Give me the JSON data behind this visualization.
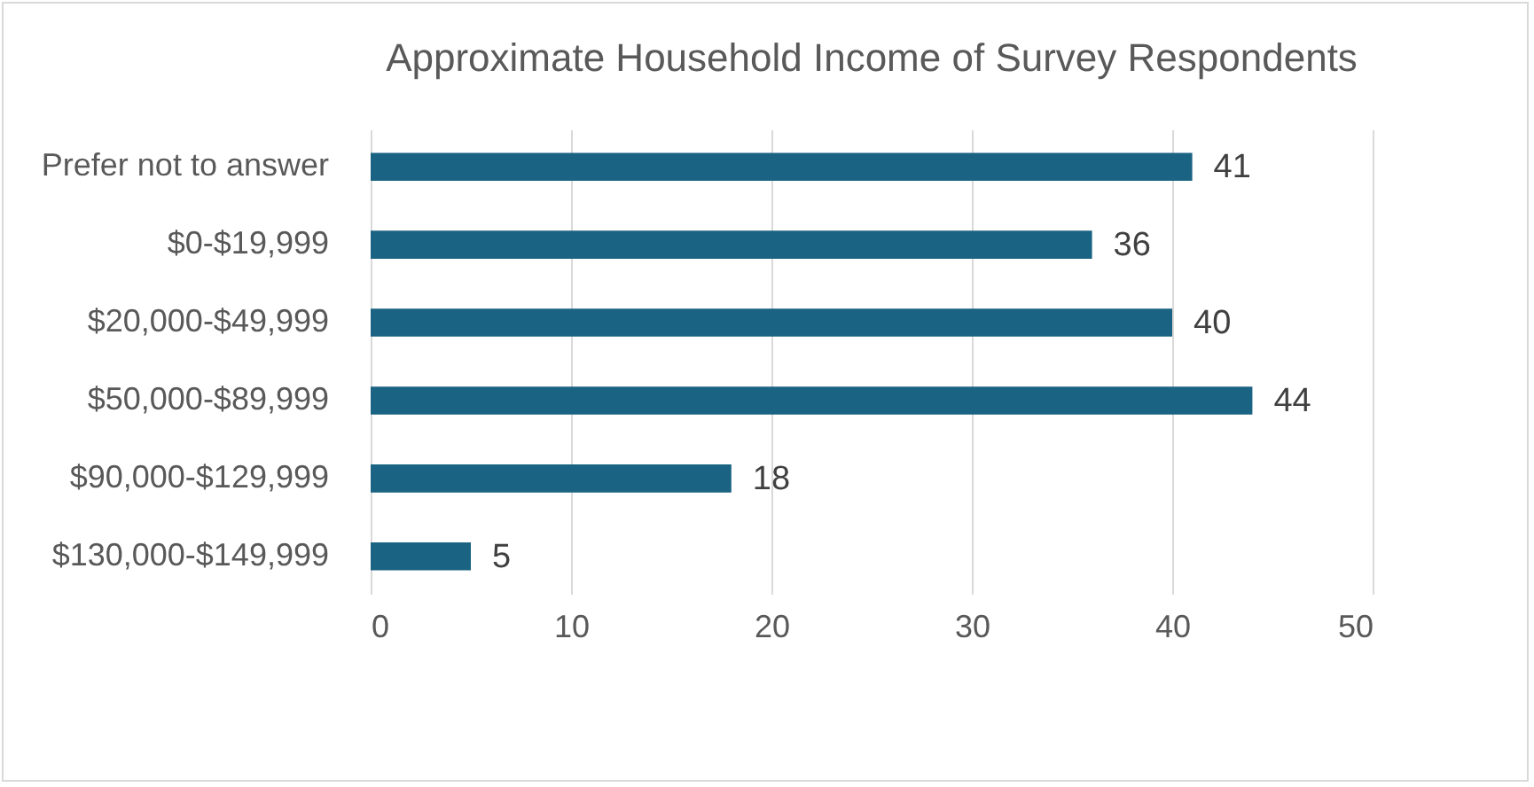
{
  "chart_data": {
    "type": "bar",
    "orientation": "horizontal",
    "title": "Approximate Household Income of Survey Respondents",
    "categories": [
      "Prefer not to answer",
      "$0-$19,999",
      "$20,000-$49,999",
      "$50,000-$89,999",
      "$90,000-$129,999",
      "$130,000-$149,999"
    ],
    "values": [
      41,
      36,
      40,
      44,
      18,
      5
    ],
    "color": "#1b6383",
    "xlim": [
      0,
      50
    ],
    "xticks": [
      0,
      10,
      20,
      30,
      40,
      50
    ],
    "grid": "x",
    "data_labels": true
  }
}
